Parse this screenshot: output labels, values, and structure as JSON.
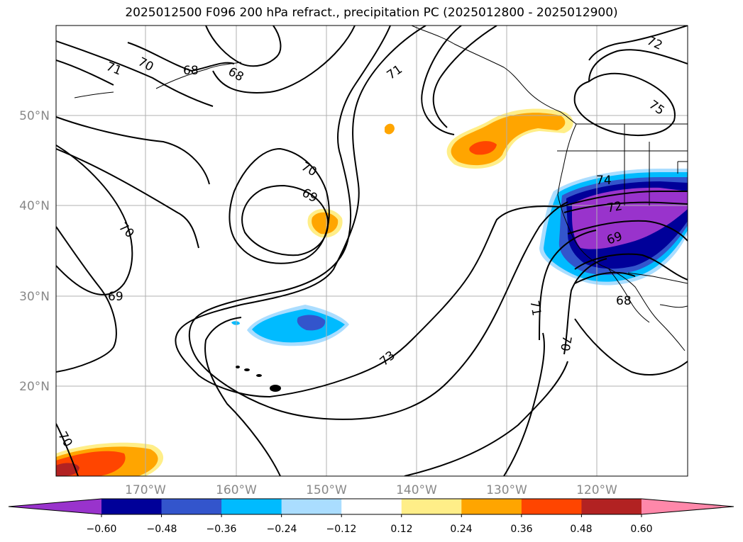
{
  "title": "2025012500 F096 200 hPa refract., precipitation PC (2025012800 - 2025012900)",
  "lat_labels": [
    "50°N",
    "40°N",
    "30°N",
    "20°N"
  ],
  "lon_labels": [
    "170°W",
    "160°W",
    "150°W",
    "140°W",
    "130°W",
    "120°W"
  ],
  "contour_labels": [
    "71",
    "70",
    "68",
    "68",
    "71",
    "72",
    "75",
    "70",
    "69",
    "70",
    "69",
    "74",
    "72",
    "69",
    "68",
    "71",
    "70",
    "73",
    "70"
  ],
  "colorbar": {
    "colors": [
      "#9933cc",
      "#000099",
      "#3355cc",
      "#00bbff",
      "#aaddff",
      "#ffffff",
      "#ffee88",
      "#ffa500",
      "#ff4500",
      "#b22222",
      "#ff88aa"
    ],
    "tick_labels": [
      "−0.60",
      "−0.48",
      "−0.36",
      "−0.24",
      "−0.12",
      "0.12",
      "0.24",
      "0.36",
      "0.48",
      "0.60"
    ]
  }
}
